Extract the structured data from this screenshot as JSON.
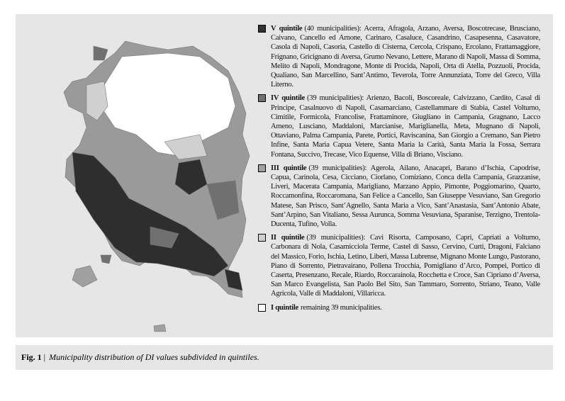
{
  "legend": [
    {
      "label": "V quintile",
      "color": "#333333",
      "text": "(40 municipalities): Acerra, Afragola, Arzano, Aversa, Boscotrecase, Brusciano, Caivano, Cancello ed Arnone, Carinaro, Casaluce, Casandrino, Casapesenna, Casavatore, Casola di Napoli, Casoria, Castello di Cisterna, Cercola, Crispano, Ercolano, Frattamaggiore, Frignano, Gricignano di Aversa, Grumo Nevano, Lettere, Marano di Napoli, Massa di Somma, Melito di Napoli, Mondragone, Monte di Procida, Napoli, Orta di Atella, Pozzuoli, Procida, Qualiano, San Marcellino, Sant’Antimo, Teverola, Torre Annunziata, Torre del Greco, Villa Literno."
    },
    {
      "label": "IV quintile",
      "color": "#707070",
      "text": "(39 municipalities): Arienzo, Bacoli, Boscoreale, Calvizzano, Cardito, Casal di Principe, Casalnuovo di Napoli, Casamarciano, Castellammare di Stabia, Castel Volturno, Cimitile, Formicola, Francolise, Frattaminore, Giugliano in Campania, Gragnano, Lacco Ameno, Lusciano, Maddaloni, Marcianise, Mariglianella, Meta, Mugnano di Napoli, Ottaviano, Palma Campania, Parete, Portici, Raviscanina, San Giorgio a Cremano, San Pietro Infine, Santa Maria Capua Vetere, Santa Maria la Carità, Santa Maria la Fossa, Serrara Fontana, Succivo, Trecase, Vico Equense, Villa di Briano, Visciano."
    },
    {
      "label": "III quintile",
      "color": "#a0a0a0",
      "text": "(39 municipalities): Agerola, Ailano, Anacapri, Barano d’Ischia, Capodrise, Capua, Carinola, Cesa, Cicciano, Ciorlano, Comiziano, Conca della Campania, Grazzanise, Liveri, Macerata Campania, Marigliano, Marzano Appio, Pimonte, Poggiomarino, Quarto, Roccamonfina, Roccaromana, San Felice a Cancello, San Giuseppe Vesuviano, San Gregorio Matese, San Prisco, Sant’Agnello, Santa Maria a Vico, Sant’Anastasia, Sant’Antonio Abate, Sant’Arpino, San Vitaliano, Sessa Aurunca, Somma Vesuviana, Sparanise, Terzigno, Trentola-Ducenta, Tufino, Volla."
    },
    {
      "label": "II quintile",
      "color": "#d0d0d0",
      "text": "(39 municipalities): Cavi Risorta, Camposano, Capri, Capriati a Volturno, Carbonara di Nola, Casamicciola Terme, Castel di Sasso, Cervino, Curti, Dragoni, Falciano del Massico, Forio, Ischia, Letino, Liberi, Massa Lubrense, Mignano Monte Lungo, Pastorano, Piano di Sorrento, Pietravairano, Pollena Trocchia, Pomigliano d’Arco, Pompei, Portico di Caserta, Presenzano, Recale, Riardo, Roccarainola, Rocchetta e Croce, San Cipriano d’Aversa, San Marco Evangelista, San Paolo Bel Sito, San Tammaro, Sorrento, Striano, Teano, Valle Agricola, Valle di Maddaloni, Villaricca."
    },
    {
      "label": "I quintile",
      "color": "#ffffff",
      "text": "remaining 39 municipalities."
    }
  ],
  "caption": {
    "label": "Fig. 1",
    "separator": "|",
    "text": "Municipality distribution  of DI  values subdivided in quintiles."
  }
}
